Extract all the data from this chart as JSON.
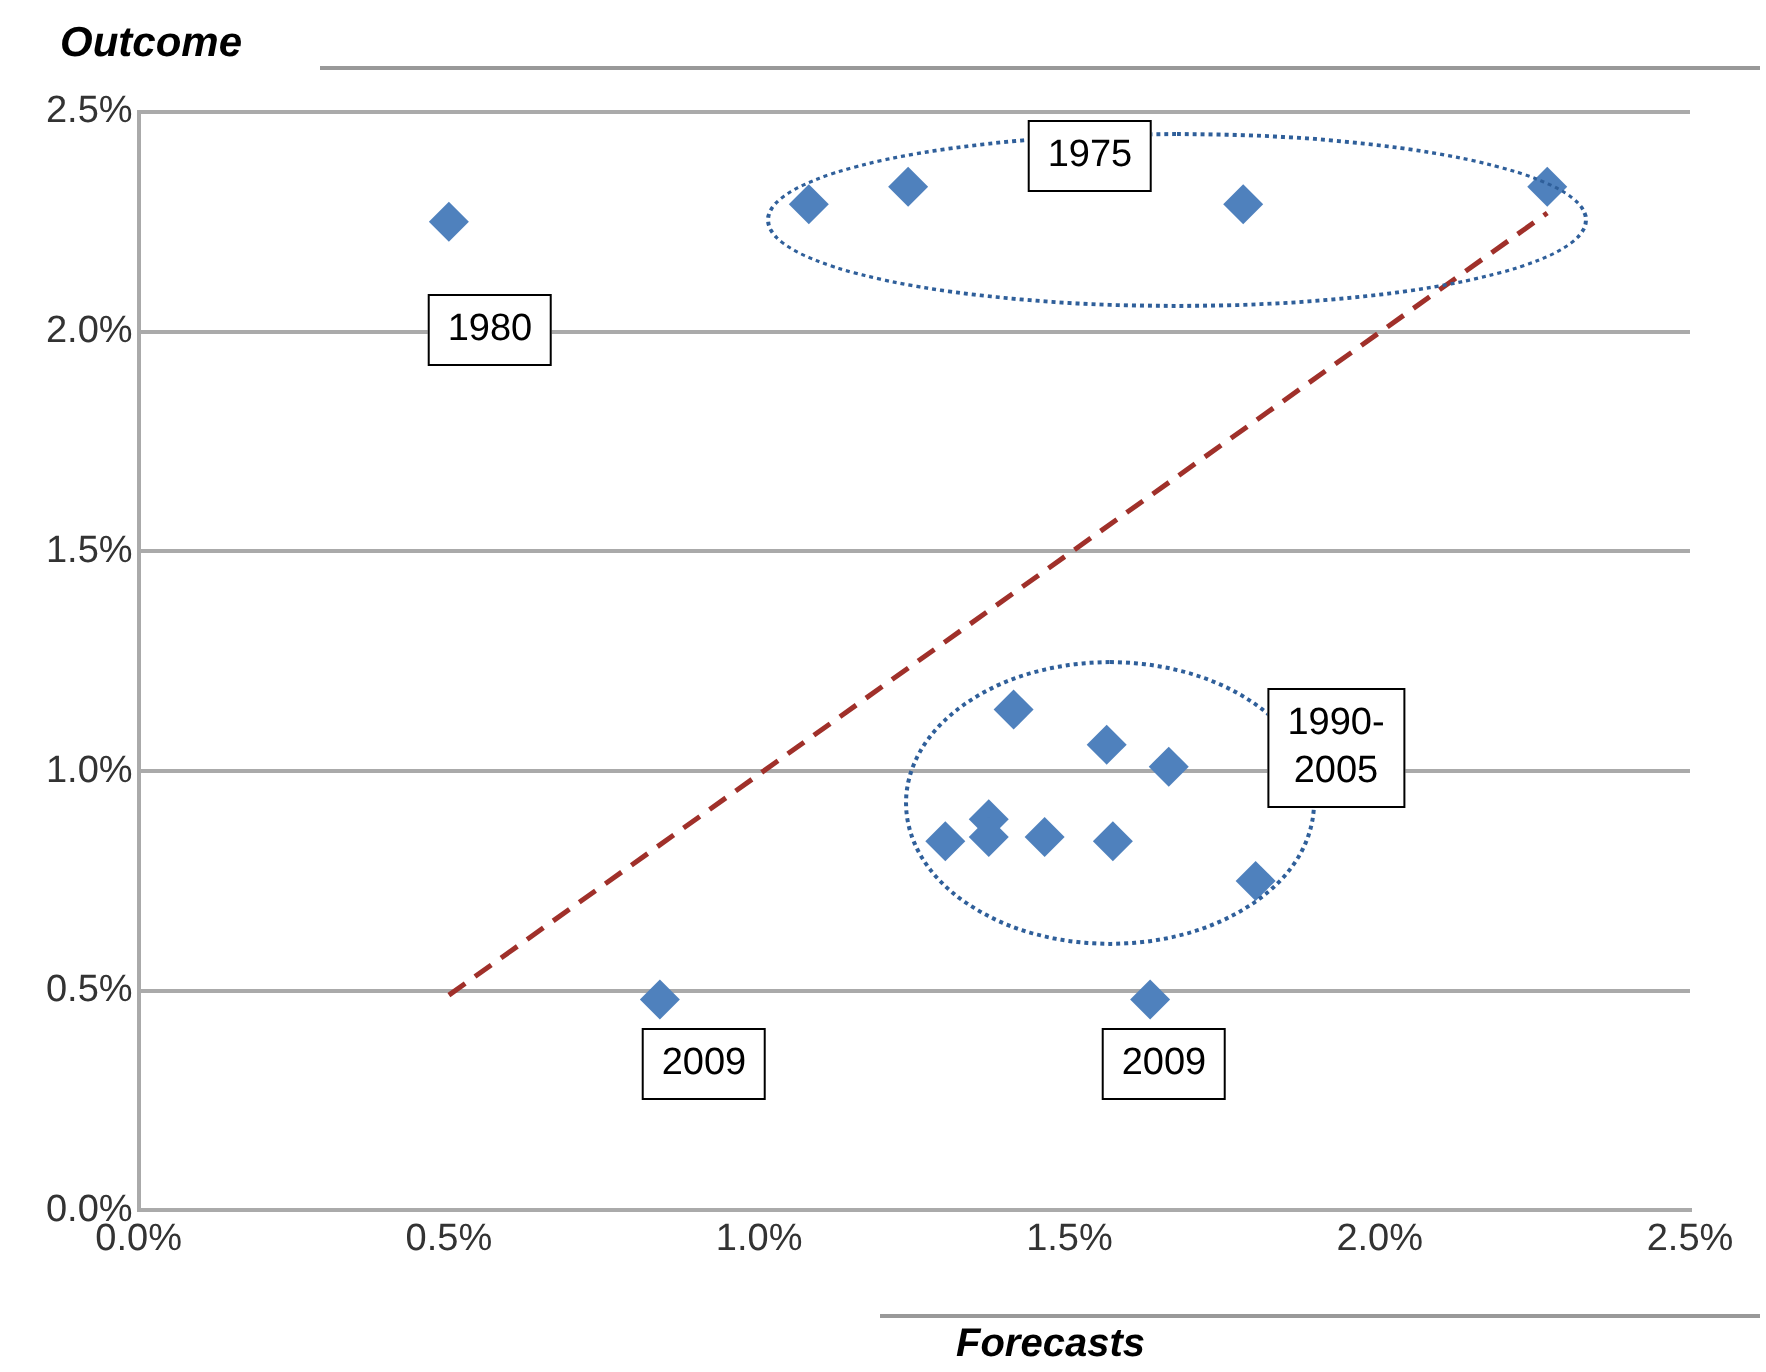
{
  "chart_data": {
    "type": "scatter",
    "xlabel": "Forecasts",
    "ylabel": "Outcome",
    "series": [
      {
        "color": "#4f81bd",
        "marker": "diamond",
        "x": [
          0.5,
          1.08,
          1.24,
          1.78,
          2.27,
          1.41,
          1.56,
          1.66,
          1.37,
          1.3,
          1.37,
          1.46,
          1.57,
          1.8,
          0.84,
          1.63
        ],
        "values": [
          2.25,
          2.29,
          2.33,
          2.29,
          2.33,
          1.14,
          1.06,
          1.01,
          0.89,
          0.84,
          0.85,
          0.85,
          0.84,
          0.75,
          0.48,
          0.48
        ]
      },
      {
        "type": "line",
        "color": "#a0302a",
        "line_style": "dashed",
        "marker": "none",
        "x": [
          0.5,
          2.27
        ],
        "values": [
          0.49,
          2.27
        ]
      }
    ],
    "xlim": [
      0,
      2.5
    ],
    "ylim": [
      0,
      2.5
    ],
    "xticks": [
      {
        "value": 0,
        "label": "0.0%"
      },
      {
        "value": 0.5,
        "label": "0.5%"
      },
      {
        "value": 1,
        "label": "1.0%"
      },
      {
        "value": 1.5,
        "label": "1.5%"
      },
      {
        "value": 2,
        "label": "2.0%"
      },
      {
        "value": 2.5,
        "label": "2.5%"
      }
    ],
    "yticks": [
      {
        "value": 0,
        "label": "0.0%"
      },
      {
        "value": 0.5,
        "label": "0.5%"
      },
      {
        "value": 1,
        "label": "1.0%"
      },
      {
        "value": 1.5,
        "label": "1.5%"
      },
      {
        "value": 2,
        "label": "2.0%"
      },
      {
        "value": 2.5,
        "label": "2.5%"
      }
    ],
    "grid": "y",
    "legend": false,
    "annotations": [
      "1975",
      "1980",
      "1990-2005",
      "2009",
      "2009"
    ]
  }
}
